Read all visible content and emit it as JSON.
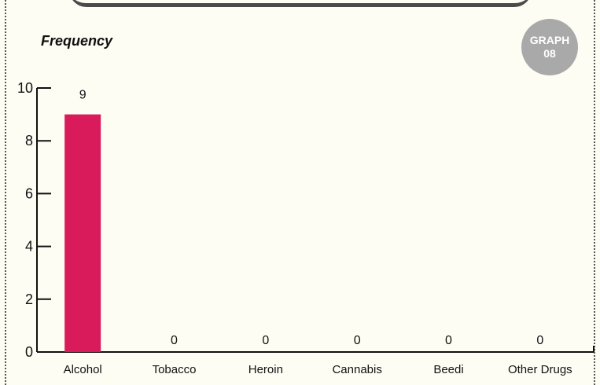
{
  "chart_data": {
    "type": "bar",
    "title": "",
    "xlabel": "",
    "ylabel": "Frequency",
    "badge": [
      "GRAPH",
      "08"
    ],
    "categories": [
      "Alcohol",
      "Tobacco",
      "Heroin",
      "Cannabis",
      "Beedi",
      "Other Drugs"
    ],
    "values": [
      9,
      0,
      0,
      0,
      0,
      0
    ],
    "data_labels": [
      "9",
      "0",
      "0",
      "0",
      "0",
      "0"
    ],
    "ylim": [
      0,
      10
    ],
    "yticks": [
      0,
      2,
      4,
      6,
      8,
      10
    ],
    "ytick_labels": [
      "0",
      "2",
      "4",
      "6",
      "8",
      "10"
    ],
    "grid": false,
    "bar_color": "#d91b5c"
  }
}
